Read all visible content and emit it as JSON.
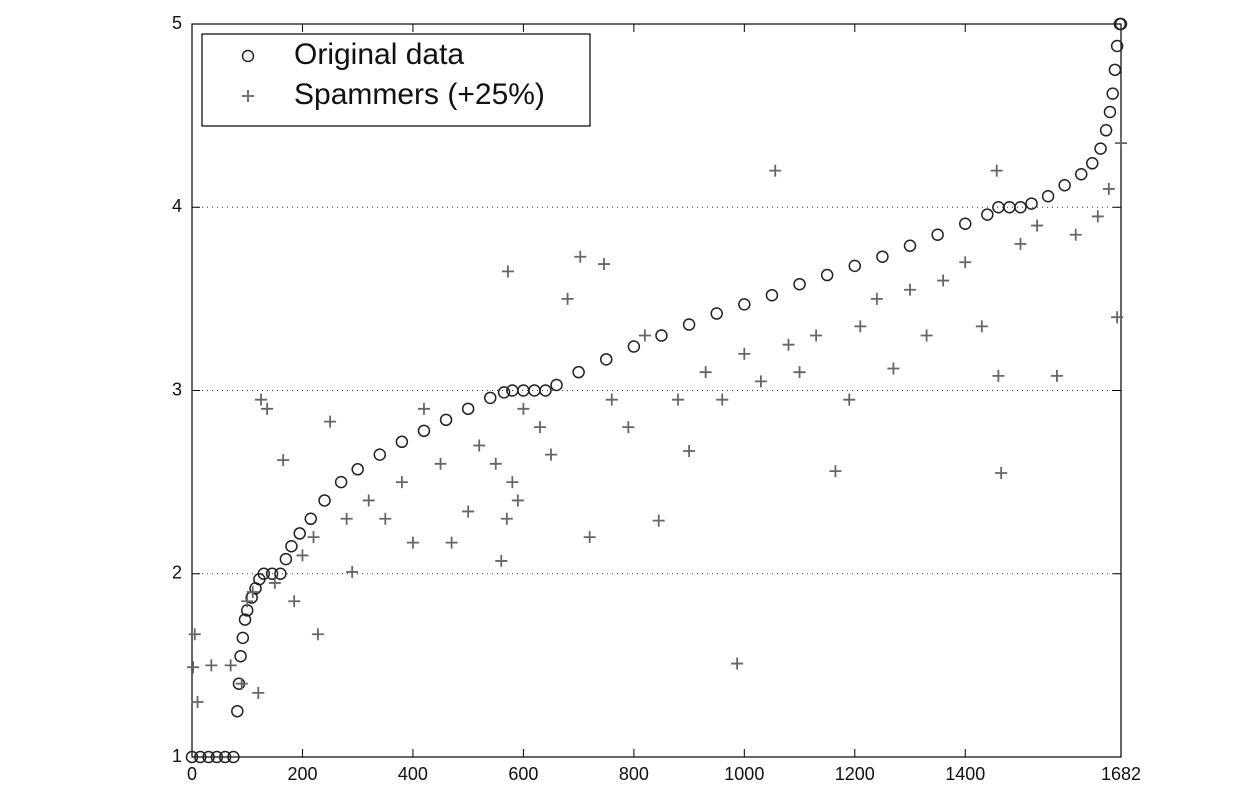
{
  "chart_data": {
    "type": "scatter",
    "xlim": [
      0,
      1682
    ],
    "ylim": [
      1,
      5
    ],
    "xticks": [
      0,
      200,
      400,
      600,
      800,
      1000,
      1200,
      1400,
      1682
    ],
    "yticks": [
      1,
      2,
      3,
      4,
      5
    ],
    "grid": true,
    "legend": "upper left",
    "series": [
      {
        "name": "Original data",
        "color": "#222222",
        "marker": "circle",
        "x": [
          0,
          15,
          30,
          45,
          60,
          75,
          82,
          85,
          88,
          92,
          96,
          100,
          108,
          115,
          122,
          130,
          145,
          160,
          170,
          180,
          195,
          215,
          240,
          270,
          300,
          340,
          380,
          420,
          460,
          500,
          540,
          565,
          580,
          600,
          620,
          640,
          660,
          700,
          750,
          800,
          850,
          900,
          950,
          1000,
          1050,
          1100,
          1150,
          1200,
          1250,
          1300,
          1350,
          1400,
          1440,
          1460,
          1480,
          1500,
          1520,
          1550,
          1580,
          1610,
          1630,
          1645,
          1655,
          1662,
          1667,
          1671,
          1675,
          1680,
          1682
        ],
        "values": [
          1,
          1,
          1,
          1,
          1,
          1,
          1.25,
          1.4,
          1.55,
          1.65,
          1.75,
          1.8,
          1.87,
          1.92,
          1.97,
          2,
          2,
          2,
          2.08,
          2.15,
          2.22,
          2.3,
          2.4,
          2.5,
          2.57,
          2.65,
          2.72,
          2.78,
          2.84,
          2.9,
          2.96,
          2.99,
          3,
          3,
          3,
          3,
          3.03,
          3.1,
          3.17,
          3.24,
          3.3,
          3.36,
          3.42,
          3.47,
          3.52,
          3.58,
          3.63,
          3.68,
          3.73,
          3.79,
          3.85,
          3.91,
          3.96,
          4,
          4,
          4,
          4.02,
          4.06,
          4.12,
          4.18,
          4.24,
          4.32,
          4.42,
          4.52,
          4.62,
          4.75,
          4.88,
          5,
          5
        ]
      },
      {
        "name": "Spammers (+25%)",
        "color": "#666666",
        "marker": "plus",
        "x": [
          2,
          5,
          10,
          35,
          70,
          90,
          100,
          110,
          120,
          125,
          136,
          150,
          165,
          185,
          200,
          220,
          228,
          250,
          280,
          290,
          320,
          350,
          380,
          400,
          420,
          450,
          470,
          500,
          520,
          550,
          560,
          570,
          572,
          580,
          590,
          600,
          630,
          650,
          680,
          703,
          720,
          746,
          760,
          790,
          820,
          845,
          880,
          900,
          930,
          960,
          987,
          1000,
          1030,
          1056,
          1080,
          1100,
          1130,
          1165,
          1190,
          1210,
          1240,
          1270,
          1300,
          1330,
          1360,
          1400,
          1430,
          1457,
          1460,
          1465,
          1500,
          1530,
          1566,
          1600,
          1640,
          1660,
          1675,
          1682
        ],
        "values": [
          1.49,
          1.67,
          1.3,
          1.5,
          1.5,
          1.4,
          1.85,
          1.9,
          1.35,
          2.95,
          2.9,
          1.95,
          2.62,
          1.85,
          2.1,
          2.2,
          1.67,
          2.83,
          2.3,
          2.01,
          2.4,
          2.3,
          2.5,
          2.17,
          2.9,
          2.6,
          2.17,
          2.34,
          2.7,
          2.6,
          2.07,
          2.3,
          3.65,
          2.5,
          2.4,
          2.9,
          2.8,
          2.65,
          3.5,
          3.73,
          2.2,
          3.69,
          2.95,
          2.8,
          3.3,
          2.29,
          2.95,
          2.67,
          3.1,
          2.95,
          1.51,
          3.2,
          3.05,
          4.2,
          3.25,
          3.1,
          3.3,
          2.56,
          2.95,
          3.35,
          3.5,
          3.12,
          3.55,
          3.3,
          3.6,
          3.7,
          3.35,
          4.2,
          3.08,
          2.55,
          3.8,
          3.9,
          3.08,
          3.85,
          3.95,
          4.1,
          3.4,
          4.35
        ]
      }
    ]
  }
}
